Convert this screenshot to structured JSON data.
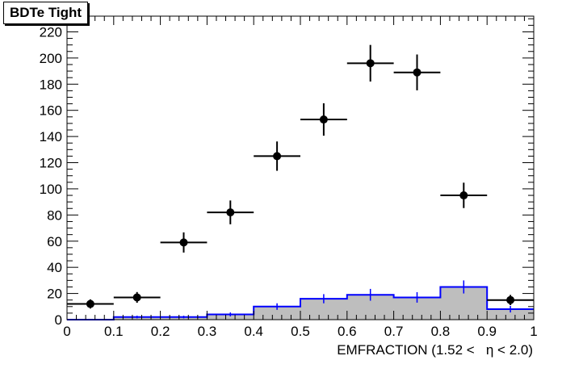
{
  "chart_data": {
    "type": "histogram",
    "title": "BDTe Tight",
    "xlabel": "EMFRACTION (1.52 <   η < 2.0)",
    "ylabel": "",
    "xlim": [
      0,
      1
    ],
    "ylim": [
      0,
      232
    ],
    "xticks": [
      0,
      0.1,
      0.2,
      0.3,
      0.4,
      0.5,
      0.6,
      0.7,
      0.8,
      0.9,
      1
    ],
    "xtick_labels": [
      "0",
      "0.1",
      "0.2",
      "0.3",
      "0.4",
      "0.5",
      "0.6",
      "0.7",
      "0.8",
      "0.9",
      "1"
    ],
    "yticks": [
      0,
      20,
      40,
      60,
      80,
      100,
      120,
      140,
      160,
      180,
      200,
      220
    ],
    "ytick_labels": [
      "0",
      "20",
      "40",
      "60",
      "80",
      "100",
      "120",
      "140",
      "160",
      "180",
      "200",
      "220"
    ],
    "bin_edges": [
      0,
      0.1,
      0.2,
      0.3,
      0.4,
      0.5,
      0.6,
      0.7,
      0.8,
      0.9,
      1.0
    ],
    "series": [
      {
        "style": "points",
        "x": [
          0.05,
          0.15,
          0.25,
          0.35,
          0.45,
          0.55,
          0.65,
          0.75,
          0.85,
          0.95
        ],
        "values": [
          12,
          17,
          59,
          82,
          125,
          153,
          196,
          189,
          95,
          15
        ],
        "errors": [
          3.5,
          4.1,
          7.7,
          9.1,
          11.2,
          12.4,
          14.0,
          13.7,
          9.7,
          3.9
        ]
      },
      {
        "style": "filled-step",
        "values": [
          0,
          2,
          2,
          4,
          10,
          16,
          19,
          17,
          25,
          8
        ],
        "errors": [
          0,
          1,
          1,
          1.5,
          2.5,
          3.5,
          4.5,
          4,
          5,
          2.5
        ],
        "fill": "#bebebe",
        "line": "#0000ff"
      }
    ],
    "grid": false,
    "legend": "none"
  }
}
